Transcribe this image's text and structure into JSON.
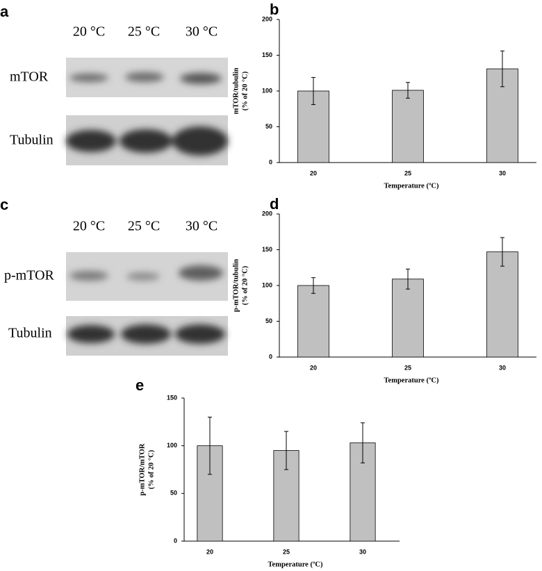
{
  "panels": [
    "a",
    "b",
    "c",
    "d",
    "e"
  ],
  "blots": [
    {
      "lanes": [
        "20 °C",
        "25 °C",
        "30 °C"
      ],
      "rows": [
        "mTOR",
        "Tubulin"
      ]
    },
    {
      "lanes": [
        "20 °C",
        "25 °C",
        "30 °C"
      ],
      "rows": [
        "p-mTOR",
        "Tubulin"
      ]
    }
  ],
  "chart_data": [
    {
      "type": "bar",
      "categories": [
        "20",
        "25",
        "30"
      ],
      "values": [
        100,
        101,
        131
      ],
      "errors": [
        19,
        11,
        25
      ],
      "color": "#c0c0c0",
      "ylim": [
        0,
        200
      ],
      "yticks": [
        0,
        50,
        100,
        150,
        200
      ],
      "ylabel": [
        "mTOR/tubulin",
        "(% of 20 °C)"
      ],
      "xlabel": "Temperature (ºC)"
    },
    {
      "type": "bar",
      "categories": [
        "20",
        "25",
        "30"
      ],
      "values": [
        100,
        109,
        147
      ],
      "errors": [
        11,
        14,
        20
      ],
      "color": "#c0c0c0",
      "ylim": [
        0,
        200
      ],
      "yticks": [
        0,
        50,
        100,
        150,
        200
      ],
      "ylabel": [
        "p-mTOR/tubulin",
        "(% of 20 °C)"
      ],
      "xlabel": "Temperature (ºC)"
    },
    {
      "type": "bar",
      "categories": [
        "20",
        "25",
        "30"
      ],
      "values": [
        100,
        95,
        103
      ],
      "errors": [
        30,
        20,
        21
      ],
      "color": "#c0c0c0",
      "ylim": [
        0,
        150
      ],
      "yticks": [
        0,
        50,
        100,
        150
      ],
      "ylabel": [
        "p-mTOR/mTOR",
        "(% of 20 °C)"
      ],
      "xlabel": "Temperature (ºC)"
    }
  ]
}
